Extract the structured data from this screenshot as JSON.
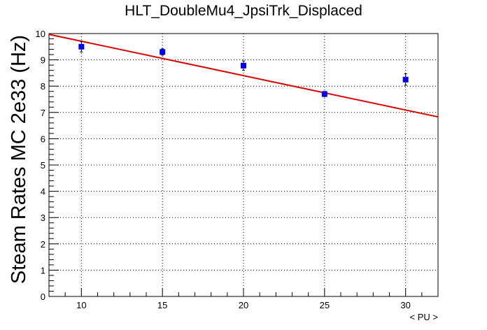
{
  "chart_data": {
    "type": "scatter",
    "title": "HLT_DoubleMu4_JpsiTrk_Displaced",
    "xlabel": "< PU >",
    "ylabel": "Steam Rates MC 2e33 (Hz)",
    "xlim": [
      8,
      32
    ],
    "ylim": [
      0,
      10
    ],
    "xticks": [
      10,
      15,
      20,
      25,
      30
    ],
    "yticks": [
      0,
      1,
      2,
      3,
      4,
      5,
      6,
      7,
      8,
      9,
      10
    ],
    "grid": true,
    "series": [
      {
        "type": "points",
        "color": "#0000ee",
        "points": [
          {
            "x": 10,
            "y": 9.5,
            "err": 0.2
          },
          {
            "x": 15,
            "y": 9.3,
            "err": 0.12
          },
          {
            "x": 20,
            "y": 8.78,
            "err": 0.18
          },
          {
            "x": 25,
            "y": 7.7,
            "err": 0.1
          },
          {
            "x": 30,
            "y": 8.25,
            "err": 0.22
          }
        ]
      },
      {
        "type": "fit-line",
        "color": "#dd0000",
        "x": [
          8,
          32
        ],
        "y": [
          9.97,
          6.83
        ]
      }
    ]
  }
}
